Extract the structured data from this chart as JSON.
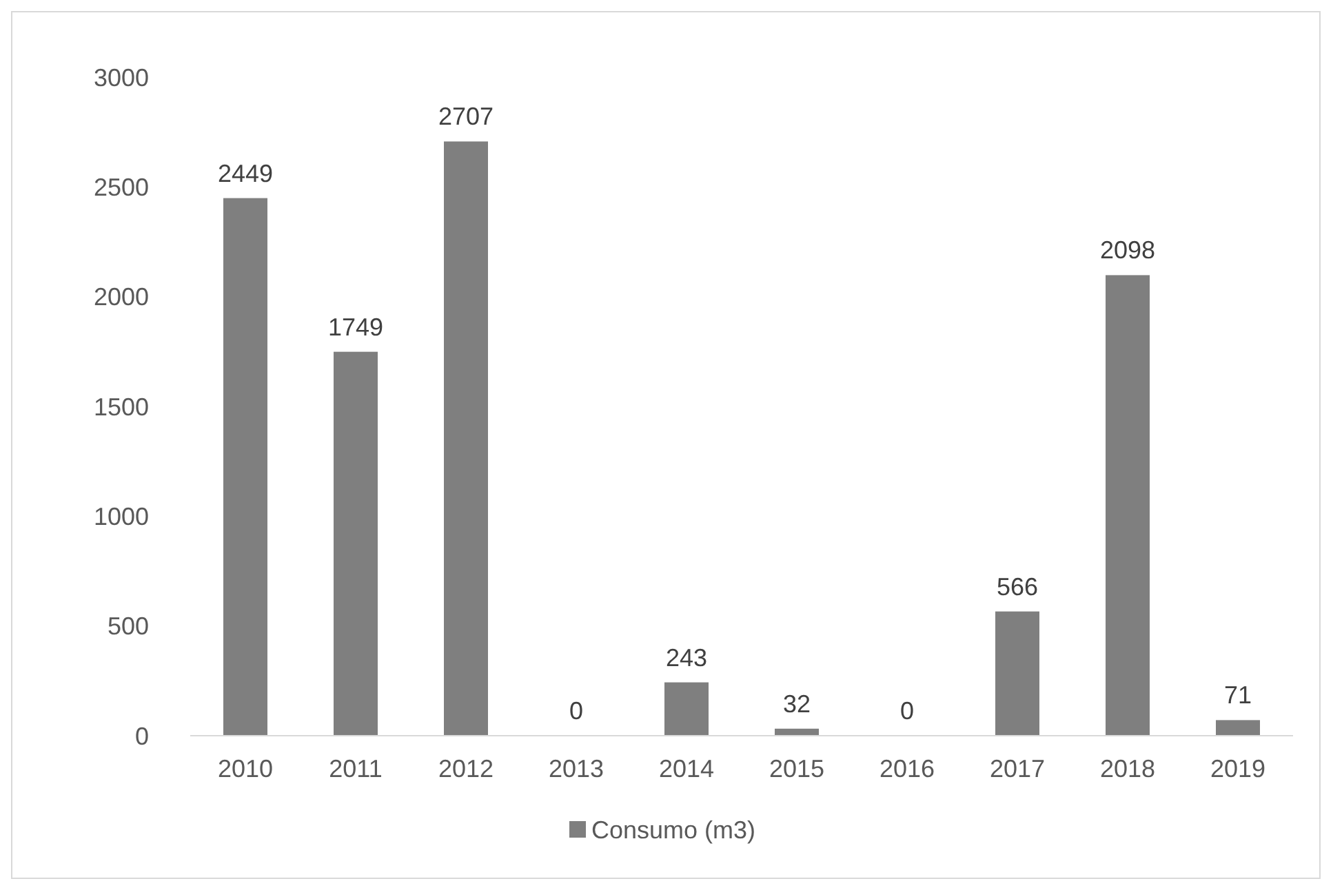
{
  "chart_data": {
    "type": "bar",
    "categories": [
      "2010",
      "2011",
      "2012",
      "2013",
      "2014",
      "2015",
      "2016",
      "2017",
      "2018",
      "2019"
    ],
    "series": [
      {
        "name": "Consumo (m3)",
        "color": "#7f7f7f",
        "values": [
          2449,
          1749,
          2707,
          0,
          243,
          32,
          0,
          566,
          2098,
          71
        ]
      }
    ],
    "ylim": [
      0,
      3000
    ],
    "yticks": [
      0,
      500,
      1000,
      1500,
      2000,
      2500,
      3000
    ],
    "grid": false,
    "legend": "bottom",
    "data_labels": true
  }
}
